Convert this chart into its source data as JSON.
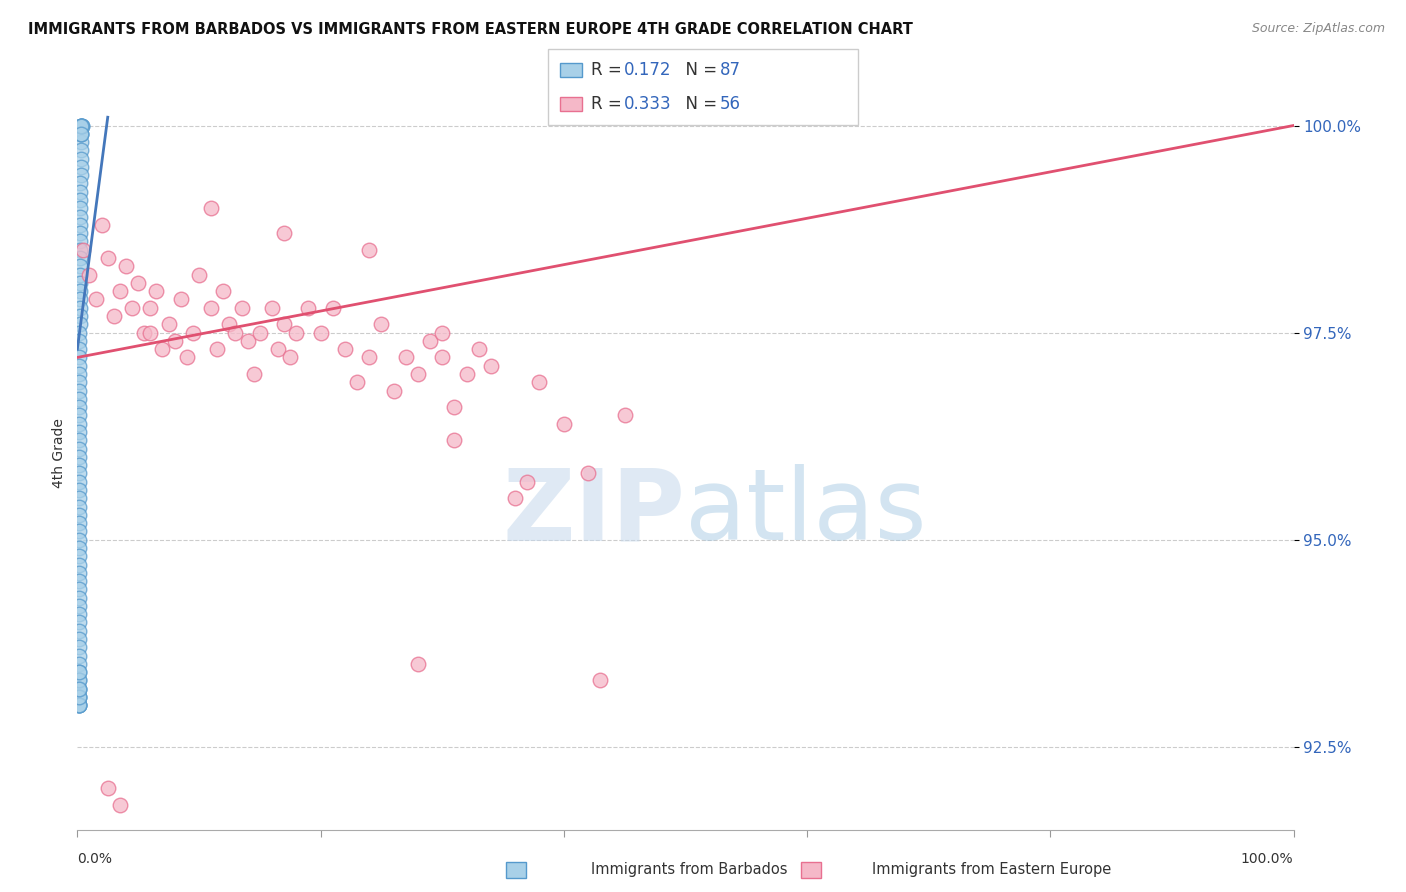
{
  "title": "IMMIGRANTS FROM BARBADOS VS IMMIGRANTS FROM EASTERN EUROPE 4TH GRADE CORRELATION CHART",
  "source": "Source: ZipAtlas.com",
  "ylabel": "4th Grade",
  "y_ticks": [
    92.5,
    95.0,
    97.5,
    100.0
  ],
  "legend_label_1": "Immigrants from Barbados",
  "legend_label_2": "Immigrants from Eastern Europe",
  "R1": 0.172,
  "N1": 87,
  "R2": 0.333,
  "N2": 56,
  "color1": "#A8D0E8",
  "color1_edge": "#5599CC",
  "color1_line": "#4477BB",
  "color2": "#F5B8C8",
  "color2_edge": "#E87090",
  "color2_line": "#E05070",
  "watermark_zip": "ZIP",
  "watermark_atlas": "atlas",
  "background": "#FFFFFF",
  "xlim": [
    0.0,
    1.0
  ],
  "ylim": [
    91.5,
    100.6
  ],
  "blue_x": [
    0.003,
    0.003,
    0.004,
    0.003,
    0.003,
    0.003,
    0.003,
    0.004,
    0.003,
    0.003,
    0.003,
    0.003,
    0.003,
    0.003,
    0.002,
    0.002,
    0.002,
    0.002,
    0.002,
    0.002,
    0.002,
    0.002,
    0.002,
    0.002,
    0.002,
    0.002,
    0.002,
    0.002,
    0.002,
    0.002,
    0.002,
    0.002,
    0.001,
    0.001,
    0.001,
    0.001,
    0.001,
    0.001,
    0.001,
    0.001,
    0.001,
    0.001,
    0.001,
    0.001,
    0.001,
    0.001,
    0.001,
    0.001,
    0.001,
    0.001,
    0.001,
    0.001,
    0.001,
    0.001,
    0.001,
    0.001,
    0.001,
    0.001,
    0.001,
    0.001,
    0.001,
    0.001,
    0.001,
    0.001,
    0.001,
    0.001,
    0.001,
    0.001,
    0.001,
    0.001,
    0.001,
    0.001,
    0.001,
    0.001,
    0.001,
    0.001,
    0.001,
    0.001,
    0.001,
    0.001,
    0.001,
    0.001,
    0.001,
    0.001,
    0.001,
    0.001,
    0.001
  ],
  "blue_y": [
    100.0,
    100.0,
    100.0,
    99.9,
    99.8,
    99.9,
    100.0,
    100.0,
    100.0,
    99.9,
    99.7,
    99.6,
    99.5,
    99.4,
    99.3,
    99.2,
    99.1,
    99.0,
    98.9,
    98.8,
    98.7,
    98.6,
    98.5,
    98.4,
    98.3,
    98.2,
    98.1,
    98.0,
    97.9,
    97.8,
    97.7,
    97.6,
    97.5,
    97.4,
    97.3,
    97.2,
    97.1,
    97.0,
    96.9,
    96.8,
    96.7,
    96.6,
    96.5,
    96.4,
    96.3,
    96.2,
    96.1,
    96.0,
    95.9,
    95.8,
    95.7,
    95.6,
    95.5,
    95.4,
    95.3,
    95.2,
    95.1,
    95.0,
    94.9,
    94.8,
    94.7,
    94.6,
    94.5,
    94.4,
    94.3,
    94.2,
    94.1,
    94.0,
    93.9,
    93.8,
    93.7,
    93.6,
    93.5,
    93.4,
    93.3,
    93.2,
    93.1,
    93.0,
    93.0,
    93.1,
    93.2,
    93.0,
    93.0,
    93.1,
    93.3,
    93.4,
    93.2
  ],
  "pink_x": [
    0.005,
    0.01,
    0.015,
    0.02,
    0.025,
    0.03,
    0.035,
    0.04,
    0.045,
    0.05,
    0.055,
    0.06,
    0.065,
    0.07,
    0.075,
    0.08,
    0.085,
    0.09,
    0.095,
    0.1,
    0.11,
    0.115,
    0.12,
    0.125,
    0.13,
    0.135,
    0.14,
    0.145,
    0.15,
    0.16,
    0.165,
    0.17,
    0.175,
    0.18,
    0.19,
    0.2,
    0.21,
    0.22,
    0.23,
    0.24,
    0.25,
    0.26,
    0.27,
    0.28,
    0.29,
    0.3,
    0.31,
    0.32,
    0.33,
    0.34,
    0.36,
    0.38,
    0.4,
    0.42,
    0.45,
    0.28
  ],
  "pink_y": [
    98.5,
    98.2,
    97.9,
    98.8,
    98.4,
    97.7,
    98.0,
    98.3,
    97.8,
    98.1,
    97.5,
    97.8,
    98.0,
    97.3,
    97.6,
    97.4,
    97.9,
    97.2,
    97.5,
    98.2,
    97.8,
    97.3,
    98.0,
    97.6,
    97.5,
    97.8,
    97.4,
    97.0,
    97.5,
    97.8,
    97.3,
    97.6,
    97.2,
    97.5,
    97.8,
    97.5,
    97.8,
    97.3,
    96.9,
    97.2,
    97.6,
    96.8,
    97.2,
    97.0,
    97.4,
    97.2,
    96.6,
    97.0,
    97.3,
    97.1,
    95.5,
    96.9,
    96.4,
    95.8,
    96.5,
    93.5
  ],
  "pink_x_extra": [
    0.11,
    0.17,
    0.24,
    0.3,
    0.31,
    0.37,
    0.43,
    0.06,
    0.025,
    0.035
  ],
  "pink_y_extra": [
    99.0,
    98.7,
    98.5,
    97.5,
    96.2,
    95.7,
    93.3,
    97.5,
    92.0,
    91.8
  ],
  "blue_line_x": [
    0.0,
    0.025
  ],
  "blue_line_y": [
    97.3,
    100.1
  ],
  "pink_line_x": [
    0.0,
    1.0
  ],
  "pink_line_y": [
    97.2,
    100.0
  ]
}
